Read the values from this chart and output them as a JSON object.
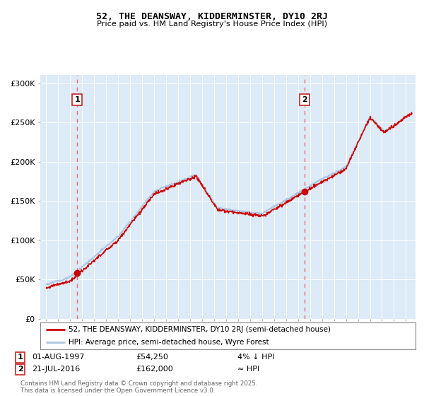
{
  "title_line1": "52, THE DEANSWAY, KIDDERMINSTER, DY10 2RJ",
  "title_line2": "Price paid vs. HM Land Registry's House Price Index (HPI)",
  "ylim": [
    0,
    310000
  ],
  "yticks": [
    0,
    50000,
    100000,
    150000,
    200000,
    250000,
    300000
  ],
  "ytick_labels": [
    "£0",
    "£50K",
    "£100K",
    "£150K",
    "£200K",
    "£250K",
    "£300K"
  ],
  "hpi_color": "#aac4e0",
  "price_color": "#cc0000",
  "dashed_color": "#e87070",
  "background_color": "#ddeaf7",
  "marker1": {
    "date_num": 1997.58,
    "label": "1",
    "price": 54250,
    "date_str": "01-AUG-1997",
    "note": "4% ↓ HPI"
  },
  "marker2": {
    "date_num": 2016.55,
    "label": "2",
    "price": 162000,
    "date_str": "21-JUL-2016",
    "note": "≈ HPI"
  },
  "legend_line1": "52, THE DEANSWAY, KIDDERMINSTER, DY10 2RJ (semi-detached house)",
  "legend_line2": "HPI: Average price, semi-detached house, Wyre Forest",
  "footnote": "Contains HM Land Registry data © Crown copyright and database right 2025.\nThis data is licensed under the Open Government Licence v3.0.",
  "xlim_start": 1994.5,
  "xlim_end": 2025.8,
  "fig_width": 6.0,
  "fig_height": 5.6
}
